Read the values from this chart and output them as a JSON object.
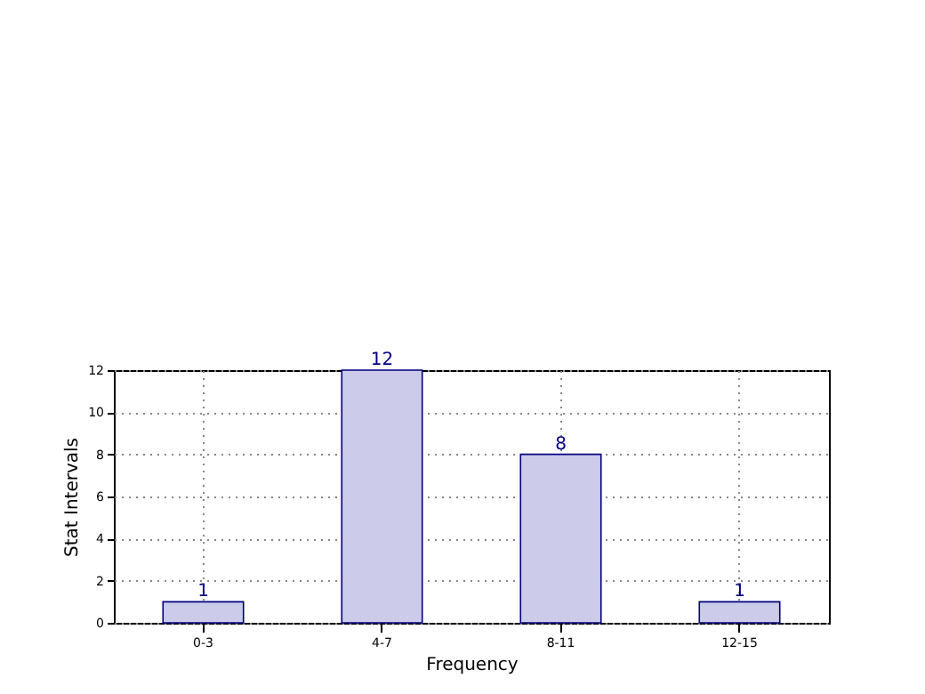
{
  "chart_data": {
    "type": "bar",
    "xlabel": "Frequency",
    "ylabel": "Stat Intervals",
    "categories": [
      "0-3",
      "4-7",
      "8-11",
      "12-15"
    ],
    "values": [
      1,
      12,
      8,
      1
    ],
    "color": "#ccccea",
    "ylim": [
      0,
      12
    ],
    "yticks": [
      0,
      2,
      4,
      6,
      8,
      10,
      12
    ],
    "grid": true,
    "data_labels": true
  }
}
